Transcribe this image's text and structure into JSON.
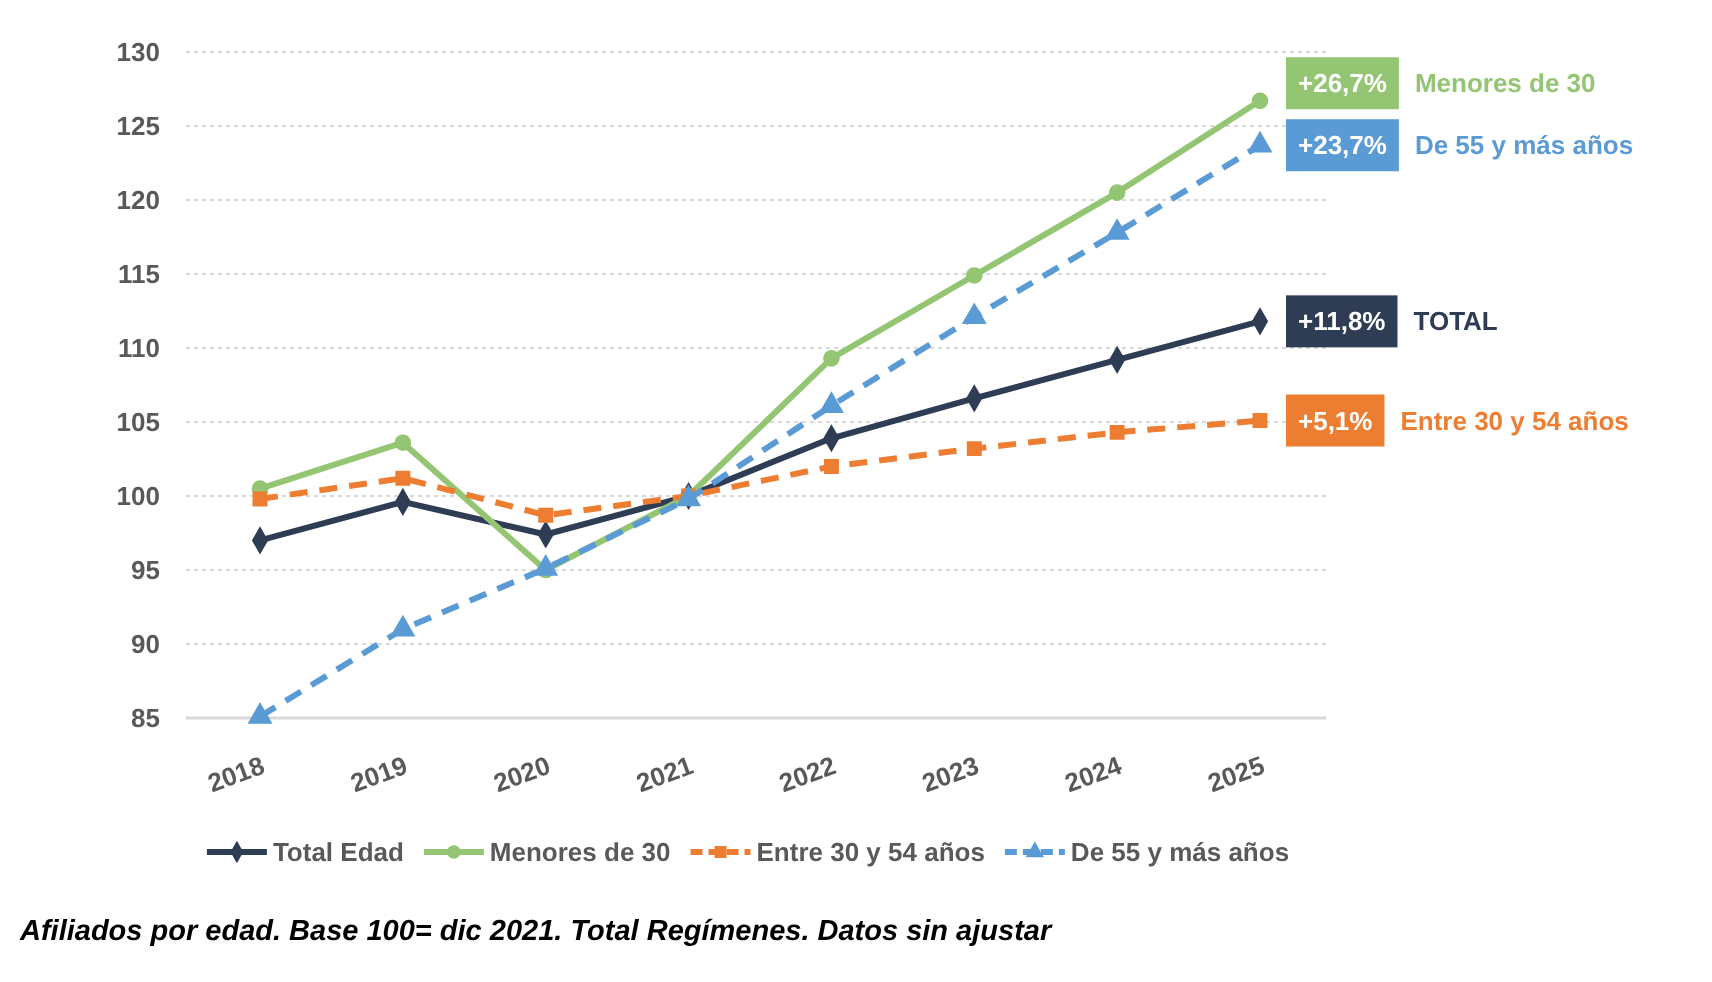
{
  "chart_data": {
    "type": "line",
    "categories": [
      "2018",
      "2019",
      "2020",
      "2021",
      "2022",
      "2023",
      "2024",
      "2025"
    ],
    "series": [
      {
        "name": "Total Edad",
        "color": "#2e3d54",
        "marker": "diamond",
        "line_style": "solid",
        "values": [
          97.0,
          99.6,
          97.4,
          100.0,
          103.9,
          106.6,
          109.2,
          111.8
        ]
      },
      {
        "name": "Menores de 30",
        "color": "#93c572",
        "marker": "circle",
        "line_style": "solid",
        "values": [
          100.5,
          103.6,
          95.0,
          100.0,
          109.3,
          114.9,
          120.5,
          126.7
        ]
      },
      {
        "name": "Entre 30 y 54 años",
        "color": "#ed7d31",
        "marker": "square",
        "line_style": "dashed",
        "values": [
          99.8,
          101.2,
          98.7,
          100.0,
          102.0,
          103.2,
          104.3,
          105.1
        ]
      },
      {
        "name": "De 55 y más años",
        "color": "#5b9bd5",
        "marker": "triangle",
        "line_style": "dashed",
        "values": [
          85.1,
          91.0,
          95.1,
          99.8,
          106.1,
          112.1,
          117.8,
          123.7
        ]
      }
    ],
    "ylim": [
      85,
      130
    ],
    "yticks": [
      85,
      90,
      95,
      100,
      105,
      110,
      115,
      120,
      125,
      130
    ],
    "grid": "y",
    "legend": "bottom",
    "annotations": [
      {
        "text": "+26,7%",
        "x": "2025",
        "y": 126.7
      },
      "Menores de 30",
      {
        "text": "+23,7%",
        "x": "2025",
        "y": 123.7
      },
      "De 55 y más años",
      {
        "text": "+11,8%",
        "x": "2025",
        "y": 111.8
      },
      "TOTAL",
      {
        "text": "+5,1%",
        "x": "2025",
        "y": 105.1
      },
      "Entre 30 y 54 años",
      "Afiliados por edad. Base 100= dic 2021. Total Regímenes. Datos sin ajustar"
    ]
  }
}
